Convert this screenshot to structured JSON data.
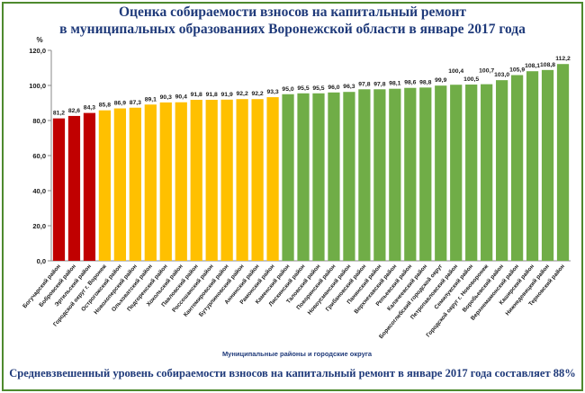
{
  "title_line1": "Оценка собираемости взносов на капитальный ремонт",
  "title_line2": "в муниципальных образованиях Воронежской области в январе 2017 года",
  "footer": "Средневзвешенный уровень собираемости взносов на капитальный ремонт в январе 2017 года составляет 88%",
  "chart_data": {
    "type": "bar",
    "title": "Оценка собираемости взносов на капитальный ремонт в муниципальных образованиях Воронежской области в январе 2017 года",
    "xlabel": "Муниципальные районы и городские округа",
    "ylabel": "%",
    "ylim": [
      0,
      120
    ],
    "yticks": [
      "0,0",
      "20,0",
      "40,0",
      "60,0",
      "80,0",
      "100,0",
      "120,0"
    ],
    "grid": false,
    "categories": [
      "Богучарский район",
      "Бобровский район",
      "Эртильский район",
      "Городской округ г. Воронеж",
      "Острогожский район",
      "Новохоперский район",
      "Ольховатский район",
      "Подгоренский район",
      "Хохольский район",
      "Павловский район",
      "Россошанский район",
      "Кантемировский район",
      "Бутурлиновский район",
      "Аннинский район",
      "Рамонский район",
      "Каменский район",
      "Лискинский район",
      "Таловский район",
      "Поворинский район",
      "Новоусманский район",
      "Грибановский район",
      "Панинский район",
      "Верхнехавский район",
      "Репьевский район",
      "Калачеевский район",
      "Борисоглебский городской округ",
      "Петропавловский район",
      "Семилукский район",
      "Городской округ г. Нововоронеж",
      "Воробьевский район",
      "Верхнемамонский район",
      "Каширский район",
      "Нижнедевицкий район",
      "Терновский район"
    ],
    "values": [
      81.2,
      82.6,
      84.3,
      85.8,
      86.9,
      87.3,
      89.1,
      90.3,
      90.4,
      91.8,
      91.8,
      91.9,
      92.2,
      92.2,
      93.3,
      95.0,
      95.5,
      95.5,
      96.0,
      96.3,
      97.8,
      97.8,
      98.1,
      98.6,
      98.8,
      99.9,
      100.4,
      100.5,
      100.7,
      103.0,
      105.9,
      108.1,
      108.8,
      112.2
    ],
    "value_labels": [
      "81,2",
      "82,6",
      "84,3",
      "85,8",
      "86,9",
      "87,3",
      "89,1",
      "90,3",
      "90,4",
      "91,8",
      "91,8",
      "91,9",
      "92,2",
      "92,2",
      "93,3",
      "95,0",
      "95,5",
      "95,5",
      "96,0",
      "96,3",
      "97,8",
      "97,8",
      "98,1",
      "98,6",
      "98,8",
      "99,9",
      "100,4",
      "100,5",
      "100,7",
      "103,0",
      "105,9",
      "108,1",
      "108,8",
      "112,2"
    ],
    "colors": {
      "below_85": "#c00000",
      "85_to_95": "#ffc000",
      "above_95": "#70ad47"
    }
  }
}
